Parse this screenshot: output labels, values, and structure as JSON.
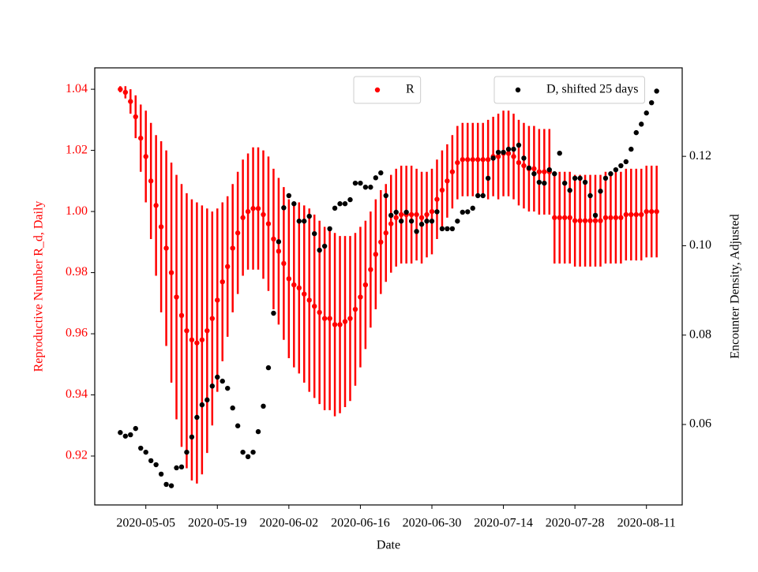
{
  "chart_data": {
    "type": "scatter",
    "xlabel": "Date",
    "ylabel": "Reproductive Number R_d, Daily",
    "y2label": "Encounter Density, Adjusted",
    "xlim": [
      "2020-04-25",
      "2020-08-18"
    ],
    "xticks": [
      "2020-05-05",
      "2020-05-19",
      "2020-06-02",
      "2020-06-16",
      "2020-06-30",
      "2020-07-14",
      "2020-07-28",
      "2020-08-11"
    ],
    "ylim": [
      0.904,
      1.047
    ],
    "yticks": [
      0.92,
      0.94,
      0.96,
      0.98,
      {
        "value": 1.0,
        "label": "1.00"
      },
      1.02,
      1.04
    ],
    "y2lim": [
      0.042,
      0.1398
    ],
    "y2ticks": [
      0.06,
      0.08,
      {
        "value": 0.1,
        "label": "0.10"
      },
      0.12
    ],
    "x": [
      "2020-04-30",
      "2020-05-01",
      "2020-05-02",
      "2020-05-03",
      "2020-05-04",
      "2020-05-05",
      "2020-05-06",
      "2020-05-07",
      "2020-05-08",
      "2020-05-09",
      "2020-05-10",
      "2020-05-11",
      "2020-05-12",
      "2020-05-13",
      "2020-05-14",
      "2020-05-15",
      "2020-05-16",
      "2020-05-17",
      "2020-05-18",
      "2020-05-19",
      "2020-05-20",
      "2020-05-21",
      "2020-05-22",
      "2020-05-23",
      "2020-05-24",
      "2020-05-25",
      "2020-05-26",
      "2020-05-27",
      "2020-05-28",
      "2020-05-29",
      "2020-05-30",
      "2020-05-31",
      "2020-06-01",
      "2020-06-02",
      "2020-06-03",
      "2020-06-04",
      "2020-06-05",
      "2020-06-06",
      "2020-06-07",
      "2020-06-08",
      "2020-06-09",
      "2020-06-10",
      "2020-06-11",
      "2020-06-12",
      "2020-06-13",
      "2020-06-14",
      "2020-06-15",
      "2020-06-16",
      "2020-06-17",
      "2020-06-18",
      "2020-06-19",
      "2020-06-20",
      "2020-06-21",
      "2020-06-22",
      "2020-06-23",
      "2020-06-24",
      "2020-06-25",
      "2020-06-26",
      "2020-06-27",
      "2020-06-28",
      "2020-06-29",
      "2020-06-30",
      "2020-07-01",
      "2020-07-02",
      "2020-07-03",
      "2020-07-04",
      "2020-07-05",
      "2020-07-06",
      "2020-07-07",
      "2020-07-08",
      "2020-07-09",
      "2020-07-10",
      "2020-07-11",
      "2020-07-12",
      "2020-07-13",
      "2020-07-14",
      "2020-07-15",
      "2020-07-16",
      "2020-07-17",
      "2020-07-18",
      "2020-07-19",
      "2020-07-20",
      "2020-07-21",
      "2020-07-22",
      "2020-07-23",
      "2020-07-24",
      "2020-07-25",
      "2020-07-26",
      "2020-07-27",
      "2020-07-28",
      "2020-07-29",
      "2020-07-30",
      "2020-07-31",
      "2020-08-01",
      "2020-08-02",
      "2020-08-03",
      "2020-08-04",
      "2020-08-05",
      "2020-08-06",
      "2020-08-07",
      "2020-08-08",
      "2020-08-09",
      "2020-08-10",
      "2020-08-11",
      "2020-08-12",
      "2020-08-13"
    ],
    "series": [
      {
        "name": "R",
        "color": "#ff0000",
        "legend": "upper center",
        "values": [
          1.04,
          1.039,
          1.036,
          1.031,
          1.024,
          1.018,
          1.01,
          1.002,
          0.995,
          0.988,
          0.98,
          0.972,
          0.966,
          0.961,
          0.958,
          0.957,
          0.958,
          0.961,
          0.965,
          0.971,
          0.977,
          0.982,
          0.988,
          0.993,
          0.998,
          1.0,
          1.001,
          1.001,
          0.999,
          0.996,
          0.991,
          0.987,
          0.983,
          0.978,
          0.976,
          0.975,
          0.973,
          0.971,
          0.969,
          0.967,
          0.965,
          0.965,
          0.963,
          0.963,
          0.964,
          0.965,
          0.968,
          0.972,
          0.976,
          0.981,
          0.986,
          0.99,
          0.993,
          0.996,
          0.998,
          0.999,
          0.999,
          0.999,
          0.999,
          0.998,
          0.999,
          1.0,
          1.004,
          1.007,
          1.01,
          1.013,
          1.016,
          1.017,
          1.017,
          1.017,
          1.017,
          1.017,
          1.017,
          1.018,
          1.018,
          1.019,
          1.019,
          1.018,
          1.016,
          1.015,
          1.014,
          1.014,
          1.013,
          1.013,
          1.013,
          0.998,
          0.998,
          0.998,
          0.998,
          0.997,
          0.997,
          0.997,
          0.997,
          0.997,
          0.997,
          0.998,
          0.998,
          0.998,
          0.998,
          0.999,
          0.999,
          0.999,
          0.999,
          1.0,
          1.0,
          1.0
        ],
        "errors": [
          0.001,
          0.002,
          0.004,
          0.007,
          0.011,
          0.015,
          0.019,
          0.023,
          0.028,
          0.032,
          0.036,
          0.04,
          0.043,
          0.045,
          0.046,
          0.046,
          0.044,
          0.04,
          0.035,
          0.03,
          0.026,
          0.023,
          0.021,
          0.02,
          0.019,
          0.019,
          0.02,
          0.02,
          0.021,
          0.022,
          0.023,
          0.024,
          0.025,
          0.026,
          0.027,
          0.028,
          0.029,
          0.03,
          0.03,
          0.03,
          0.03,
          0.03,
          0.03,
          0.029,
          0.028,
          0.027,
          0.025,
          0.023,
          0.021,
          0.019,
          0.018,
          0.017,
          0.016,
          0.016,
          0.016,
          0.016,
          0.016,
          0.016,
          0.015,
          0.015,
          0.014,
          0.014,
          0.013,
          0.013,
          0.012,
          0.012,
          0.012,
          0.012,
          0.012,
          0.012,
          0.012,
          0.012,
          0.013,
          0.013,
          0.014,
          0.014,
          0.014,
          0.014,
          0.014,
          0.014,
          0.014,
          0.014,
          0.014,
          0.014,
          0.014,
          0.015,
          0.015,
          0.015,
          0.015,
          0.015,
          0.015,
          0.015,
          0.015,
          0.015,
          0.015,
          0.015,
          0.015,
          0.015,
          0.015,
          0.015,
          0.015,
          0.015,
          0.015,
          0.015,
          0.015,
          0.015
        ]
      },
      {
        "name": "D, shifted 25 days",
        "color": "#000000",
        "axis": "y2",
        "legend": "upper right",
        "values": [
          0.0582,
          0.0574,
          0.0577,
          0.0591,
          0.0547,
          0.0538,
          0.0519,
          0.051,
          0.0489,
          0.0466,
          0.0463,
          0.0503,
          0.0505,
          0.0538,
          0.0572,
          0.0616,
          0.0644,
          0.0655,
          0.0686,
          0.0706,
          0.0697,
          0.0681,
          0.0637,
          0.0597,
          0.0538,
          0.0528,
          0.0538,
          0.0584,
          0.0641,
          0.0727,
          0.0849,
          0.1009,
          0.1085,
          0.1112,
          0.1094,
          0.1055,
          0.1055,
          0.1066,
          0.1027,
          0.099,
          0.0999,
          0.1038,
          0.1084,
          0.1094,
          0.1094,
          0.1103,
          0.114,
          0.114,
          0.1131,
          0.1131,
          0.1152,
          0.1163,
          0.1112,
          0.1068,
          0.1075,
          0.1055,
          0.1075,
          0.1055,
          0.1032,
          0.1048,
          0.1055,
          0.1055,
          0.1076,
          0.1038,
          0.1038,
          0.1038,
          0.1055,
          0.1075,
          0.1076,
          0.1084,
          0.1112,
          0.1112,
          0.1151,
          0.1196,
          0.1209,
          0.1209,
          0.1216,
          0.1216,
          0.1225,
          0.1196,
          0.1174,
          0.1161,
          0.1142,
          0.114,
          0.117,
          0.1161,
          0.1207,
          0.114,
          0.1124,
          0.1151,
          0.1151,
          0.1142,
          0.1112,
          0.1068,
          0.1122,
          0.1151,
          0.1161,
          0.117,
          0.1179,
          0.1188,
          0.1216,
          0.1253,
          0.1272,
          0.1297,
          0.132,
          0.1346
        ]
      }
    ]
  }
}
